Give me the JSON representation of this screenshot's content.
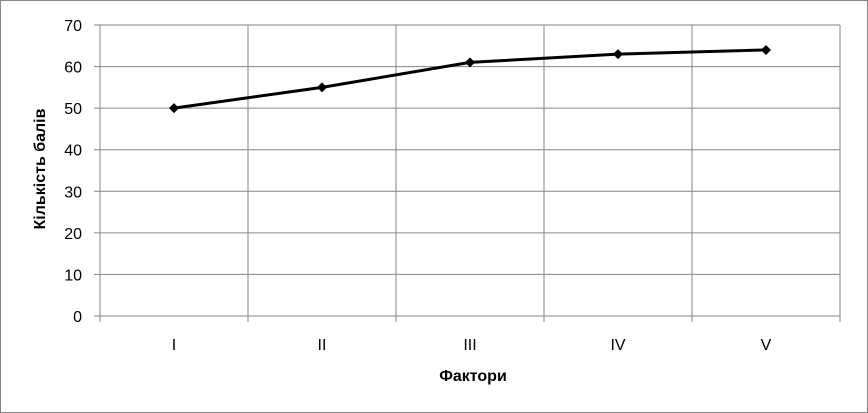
{
  "chart_data": {
    "type": "line",
    "title": "",
    "xlabel": "Фактори",
    "ylabel": "Кількість балів",
    "categories": [
      "I",
      "II",
      "III",
      "IV",
      "V"
    ],
    "series": [
      {
        "values": [
          50,
          55,
          61,
          63,
          64
        ]
      }
    ],
    "ylim": [
      0,
      70
    ],
    "ytick_step": 10,
    "grid": true,
    "legend": "none",
    "marker": "diamond",
    "colors": {
      "line": "#000000",
      "grid": "#868686",
      "frame": "#868686"
    }
  }
}
